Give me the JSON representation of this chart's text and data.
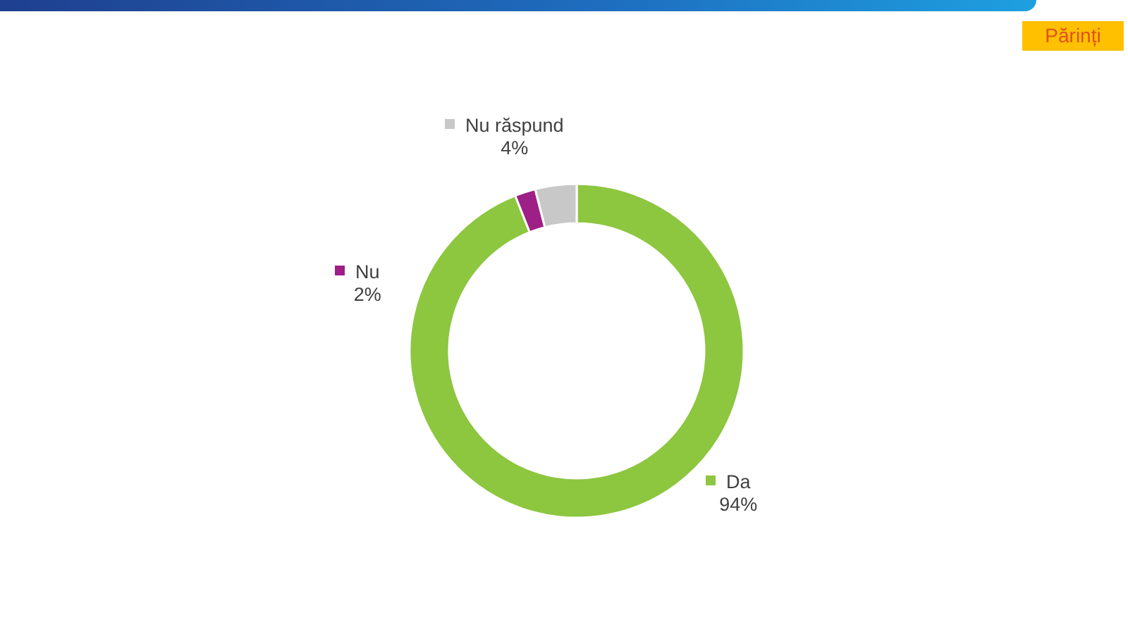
{
  "chart_data": {
    "type": "donut",
    "categories": [
      "Da",
      "Nu",
      "Nu răspund"
    ],
    "values": [
      94,
      2,
      4
    ],
    "colors": [
      "#8dc63f",
      "#9e1f86",
      "#c8c8c8"
    ],
    "value_labels": [
      "94%",
      "2%",
      "4%"
    ],
    "legend": "top",
    "annotations": [
      "Părinți"
    ]
  }
}
